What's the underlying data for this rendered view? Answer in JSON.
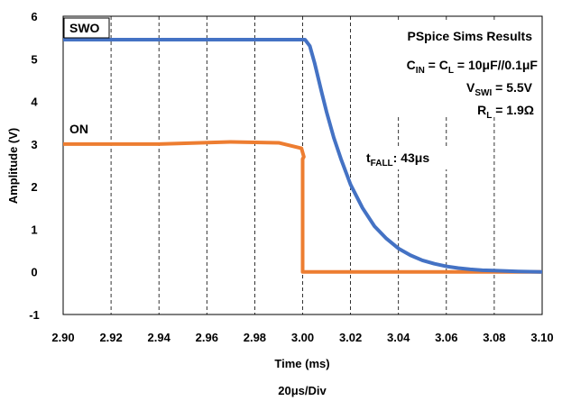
{
  "chart_data": {
    "type": "line",
    "x_label": "Time (ms)",
    "y_label": "Amplitude (V)",
    "division_note": "20μs/Div",
    "xlim": [
      2.9,
      3.1
    ],
    "ylim": [
      -1,
      6
    ],
    "x_ticks": [
      2.9,
      2.92,
      2.94,
      2.96,
      2.98,
      3.0,
      3.02,
      3.04,
      3.06,
      3.08,
      3.1
    ],
    "x_tick_labels": [
      "2.90",
      "2.92",
      "2.94",
      "2.96",
      "2.98",
      "3.00",
      "3.02",
      "3.04",
      "3.06",
      "3.08",
      "3.10"
    ],
    "y_ticks": [
      -1,
      0,
      1,
      2,
      3,
      4,
      5,
      6
    ],
    "y_tick_labels": [
      "-1",
      "0",
      "1",
      "2",
      "3",
      "4",
      "5",
      "6"
    ],
    "grid": {
      "vertical": "dashed",
      "horizontal": "none"
    },
    "series": [
      {
        "name": "SWO",
        "color": "#4472C4",
        "x": [
          2.9,
          3.001,
          3.003,
          3.005,
          3.008,
          3.01,
          3.013,
          3.016,
          3.02,
          3.025,
          3.03,
          3.035,
          3.04,
          3.045,
          3.05,
          3.055,
          3.06,
          3.065,
          3.07,
          3.075,
          3.08,
          3.085,
          3.09,
          3.095,
          3.1
        ],
        "y": [
          5.45,
          5.45,
          5.3,
          4.9,
          4.2,
          3.75,
          3.15,
          2.65,
          2.05,
          1.5,
          1.07,
          0.78,
          0.55,
          0.39,
          0.27,
          0.19,
          0.13,
          0.09,
          0.06,
          0.04,
          0.03,
          0.02,
          0.01,
          0.005,
          0.0
        ]
      },
      {
        "name": "ON",
        "color": "#ED7D31",
        "x": [
          2.9,
          2.94,
          2.97,
          2.99,
          2.9995,
          3.0005,
          3.0,
          3.0,
          3.0,
          3.1
        ],
        "y": [
          3.0,
          3.0,
          3.05,
          3.03,
          2.9,
          2.7,
          2.65,
          0.0,
          0.0,
          0.0
        ]
      }
    ],
    "annotations": {
      "title": "PSpice Sims Results",
      "line1_main": "C",
      "line1_sub": "IN",
      "line1_mid": " = C",
      "line1_sub2": "L",
      "line1_tail": " = 10μF//0.1μF",
      "line2_main": "V",
      "line2_sub": "SWI",
      "line2_tail": " = 5.5V",
      "line3_main": "R",
      "line3_sub": "L",
      "line3_tail": " = 1.9Ω",
      "fall_main": "t",
      "fall_sub": "FALL",
      "fall_tail": ": 43μs"
    }
  }
}
